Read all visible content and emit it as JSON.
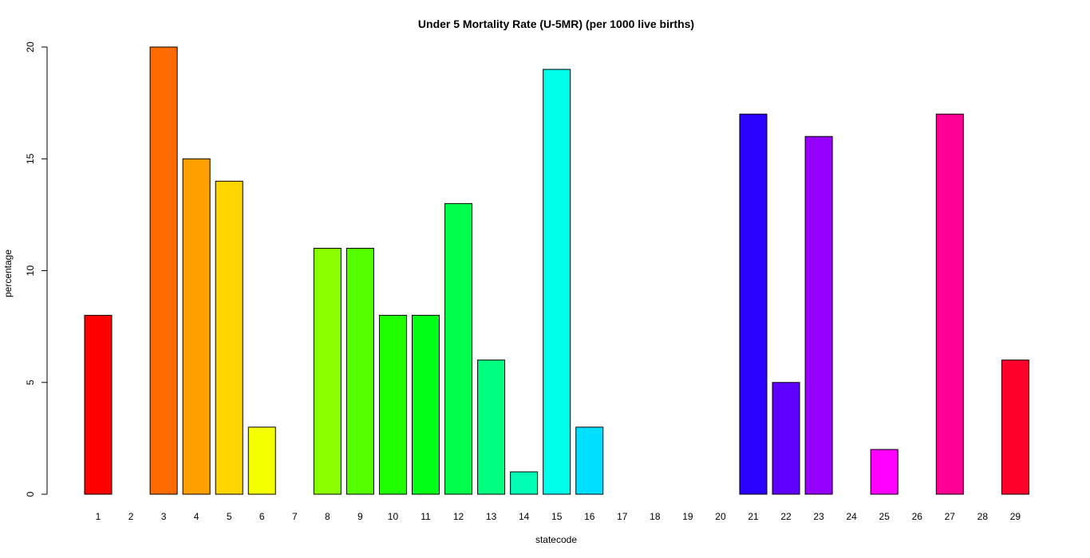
{
  "chart_data": {
    "type": "bar",
    "title": "Under 5 Mortality Rate (U-5MR) (per 1000 live births)",
    "xlabel": "statecode",
    "ylabel": "percentage",
    "ylim": [
      0,
      20
    ],
    "yticks": [
      "0",
      "5",
      "10",
      "15",
      "20"
    ],
    "categories": [
      "1",
      "2",
      "3",
      "4",
      "5",
      "6",
      "7",
      "8",
      "9",
      "10",
      "11",
      "12",
      "13",
      "14",
      "15",
      "16",
      "17",
      "18",
      "19",
      "20",
      "21",
      "22",
      "23",
      "24",
      "25",
      "26",
      "27",
      "28",
      "29"
    ],
    "values": [
      8,
      0,
      20,
      15,
      14,
      3,
      0,
      11,
      11,
      8,
      8,
      13,
      6,
      1,
      19,
      3,
      0,
      0,
      0,
      0,
      17,
      5,
      16,
      0,
      2,
      0,
      17,
      0,
      6
    ],
    "colors": [
      "#FF0000",
      "#FF3500",
      "#FF6A00",
      "#FFA000",
      "#FFD500",
      "#F4FF00",
      "#BFFF00",
      "#8AFF00",
      "#55FF00",
      "#20FF00",
      "#00FF15",
      "#00FF4A",
      "#00FF80",
      "#00FFB5",
      "#00FFEA",
      "#00DFFF",
      "#00AAFF",
      "#0075FF",
      "#0040FF",
      "#000AFF",
      "#2A00FF",
      "#5F00FF",
      "#9500FF",
      "#CA00FF",
      "#FF00FF",
      "#FF00CA",
      "#FF0095",
      "#FF005F",
      "#FF002A"
    ],
    "grid": false,
    "legend": "none"
  }
}
